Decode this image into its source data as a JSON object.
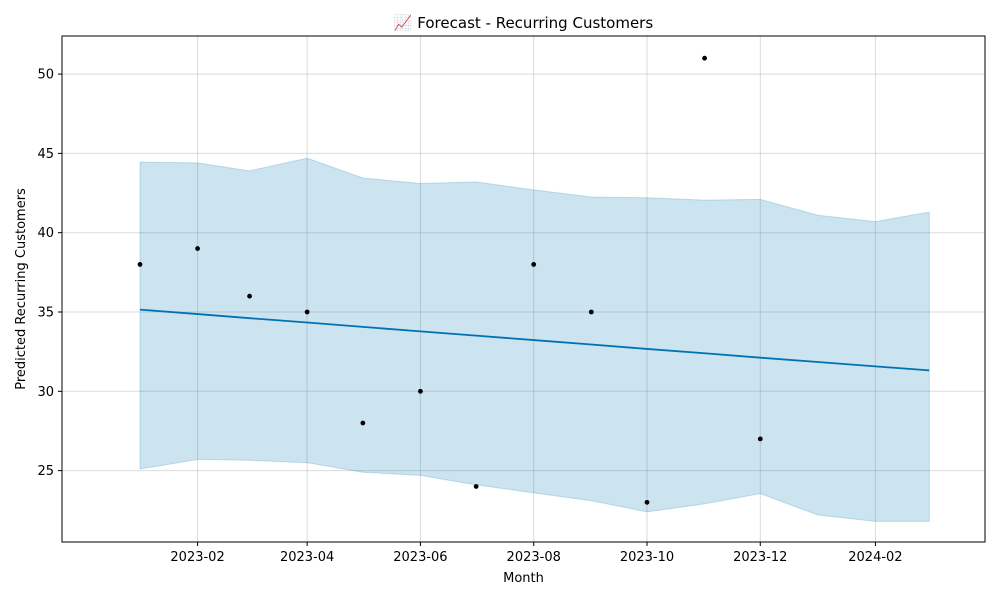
{
  "chart_data": {
    "type": "line",
    "title": "📈 Forecast - Recurring Customers",
    "xlabel": "Month",
    "ylabel": "Predicted Recurring Customers",
    "xlim": [
      "2022-11-20",
      "2024-03-31"
    ],
    "ylim": [
      20.5,
      52.4
    ],
    "grid": true,
    "colors": {
      "forecast_line": "#0072B2",
      "interval_fill": "#0072B2",
      "actual_points": "#000000"
    },
    "x_ticks": [
      "2023-02",
      "2023-04",
      "2023-06",
      "2023-08",
      "2023-10",
      "2023-12",
      "2024-02"
    ],
    "x_tick_dates": [
      "2023-02-01",
      "2023-04-01",
      "2023-06-01",
      "2023-08-01",
      "2023-10-01",
      "2023-12-01",
      "2024-02-01"
    ],
    "y_ticks": [
      25,
      30,
      35,
      40,
      45,
      50
    ],
    "actual": {
      "x": [
        "2023-01-01",
        "2023-02-01",
        "2023-03-01",
        "2023-04-01",
        "2023-05-01",
        "2023-06-01",
        "2023-07-01",
        "2023-08-01",
        "2023-09-01",
        "2023-10-01",
        "2023-11-01",
        "2023-12-01"
      ],
      "y": [
        38,
        39,
        36,
        35,
        28,
        30,
        24,
        38,
        35,
        23,
        51,
        27
      ]
    },
    "forecast": {
      "x": [
        "2023-01-01",
        "2023-02-01",
        "2023-03-01",
        "2023-04-01",
        "2023-05-01",
        "2023-06-01",
        "2023-07-01",
        "2023-08-01",
        "2023-09-01",
        "2023-10-01",
        "2023-11-01",
        "2023-12-01",
        "2024-01-01",
        "2024-02-01",
        "2024-03-01"
      ],
      "yhat": [
        35.15,
        34.87,
        34.61,
        34.34,
        34.06,
        33.78,
        33.51,
        33.23,
        32.95,
        32.67,
        32.4,
        32.12,
        31.85,
        31.57,
        31.32
      ],
      "yhat_lower": [
        25.1,
        25.7,
        25.65,
        25.5,
        24.9,
        24.7,
        24.1,
        23.6,
        23.1,
        22.4,
        22.9,
        23.55,
        22.2,
        21.8,
        21.8
      ],
      "yhat_upper": [
        44.45,
        44.4,
        43.9,
        44.7,
        43.45,
        43.1,
        43.2,
        42.7,
        42.25,
        42.2,
        42.05,
        42.1,
        41.1,
        40.7,
        41.3
      ]
    }
  }
}
